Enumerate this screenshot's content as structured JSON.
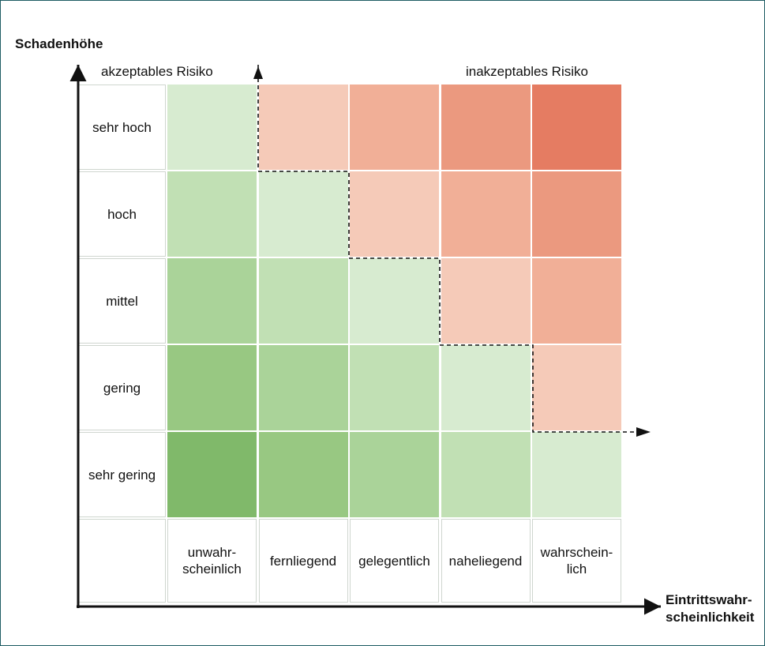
{
  "y_axis_title": "Schadenhöhe",
  "x_axis_title": [
    "Eintrittswahr-",
    "scheinlichkeit"
  ],
  "acceptable_label": "akzeptables Risiko",
  "unacceptable_label": "inakzeptables Risiko",
  "rows": [
    "sehr hoch",
    "hoch",
    "mittel",
    "gering",
    "sehr gering"
  ],
  "columns": [
    [
      "unwahr-",
      "scheinlich"
    ],
    [
      "fernliegend"
    ],
    [
      "gelegentlich"
    ],
    [
      "naheliegend"
    ],
    [
      "wahrschein-",
      "lich"
    ]
  ],
  "colors": {
    "border": "#1f5d63",
    "palette": {
      "g5": "#80b96a",
      "g4": "#98c882",
      "g3": "#aad399",
      "g2": "#c1e0b4",
      "g1": "#d7ebd0",
      "r1": "#f5cab8",
      "r2": "#f1af97",
      "r3": "#eb997f",
      "r4": "#e57c62"
    }
  },
  "matrix": [
    [
      "g1",
      "r1",
      "r2",
      "r3",
      "r4"
    ],
    [
      "g2",
      "g1",
      "r1",
      "r2",
      "r3"
    ],
    [
      "g3",
      "g2",
      "g1",
      "r1",
      "r2"
    ],
    [
      "g4",
      "g3",
      "g2",
      "g1",
      "r1"
    ],
    [
      "g5",
      "g4",
      "g3",
      "g2",
      "g1"
    ]
  ]
}
